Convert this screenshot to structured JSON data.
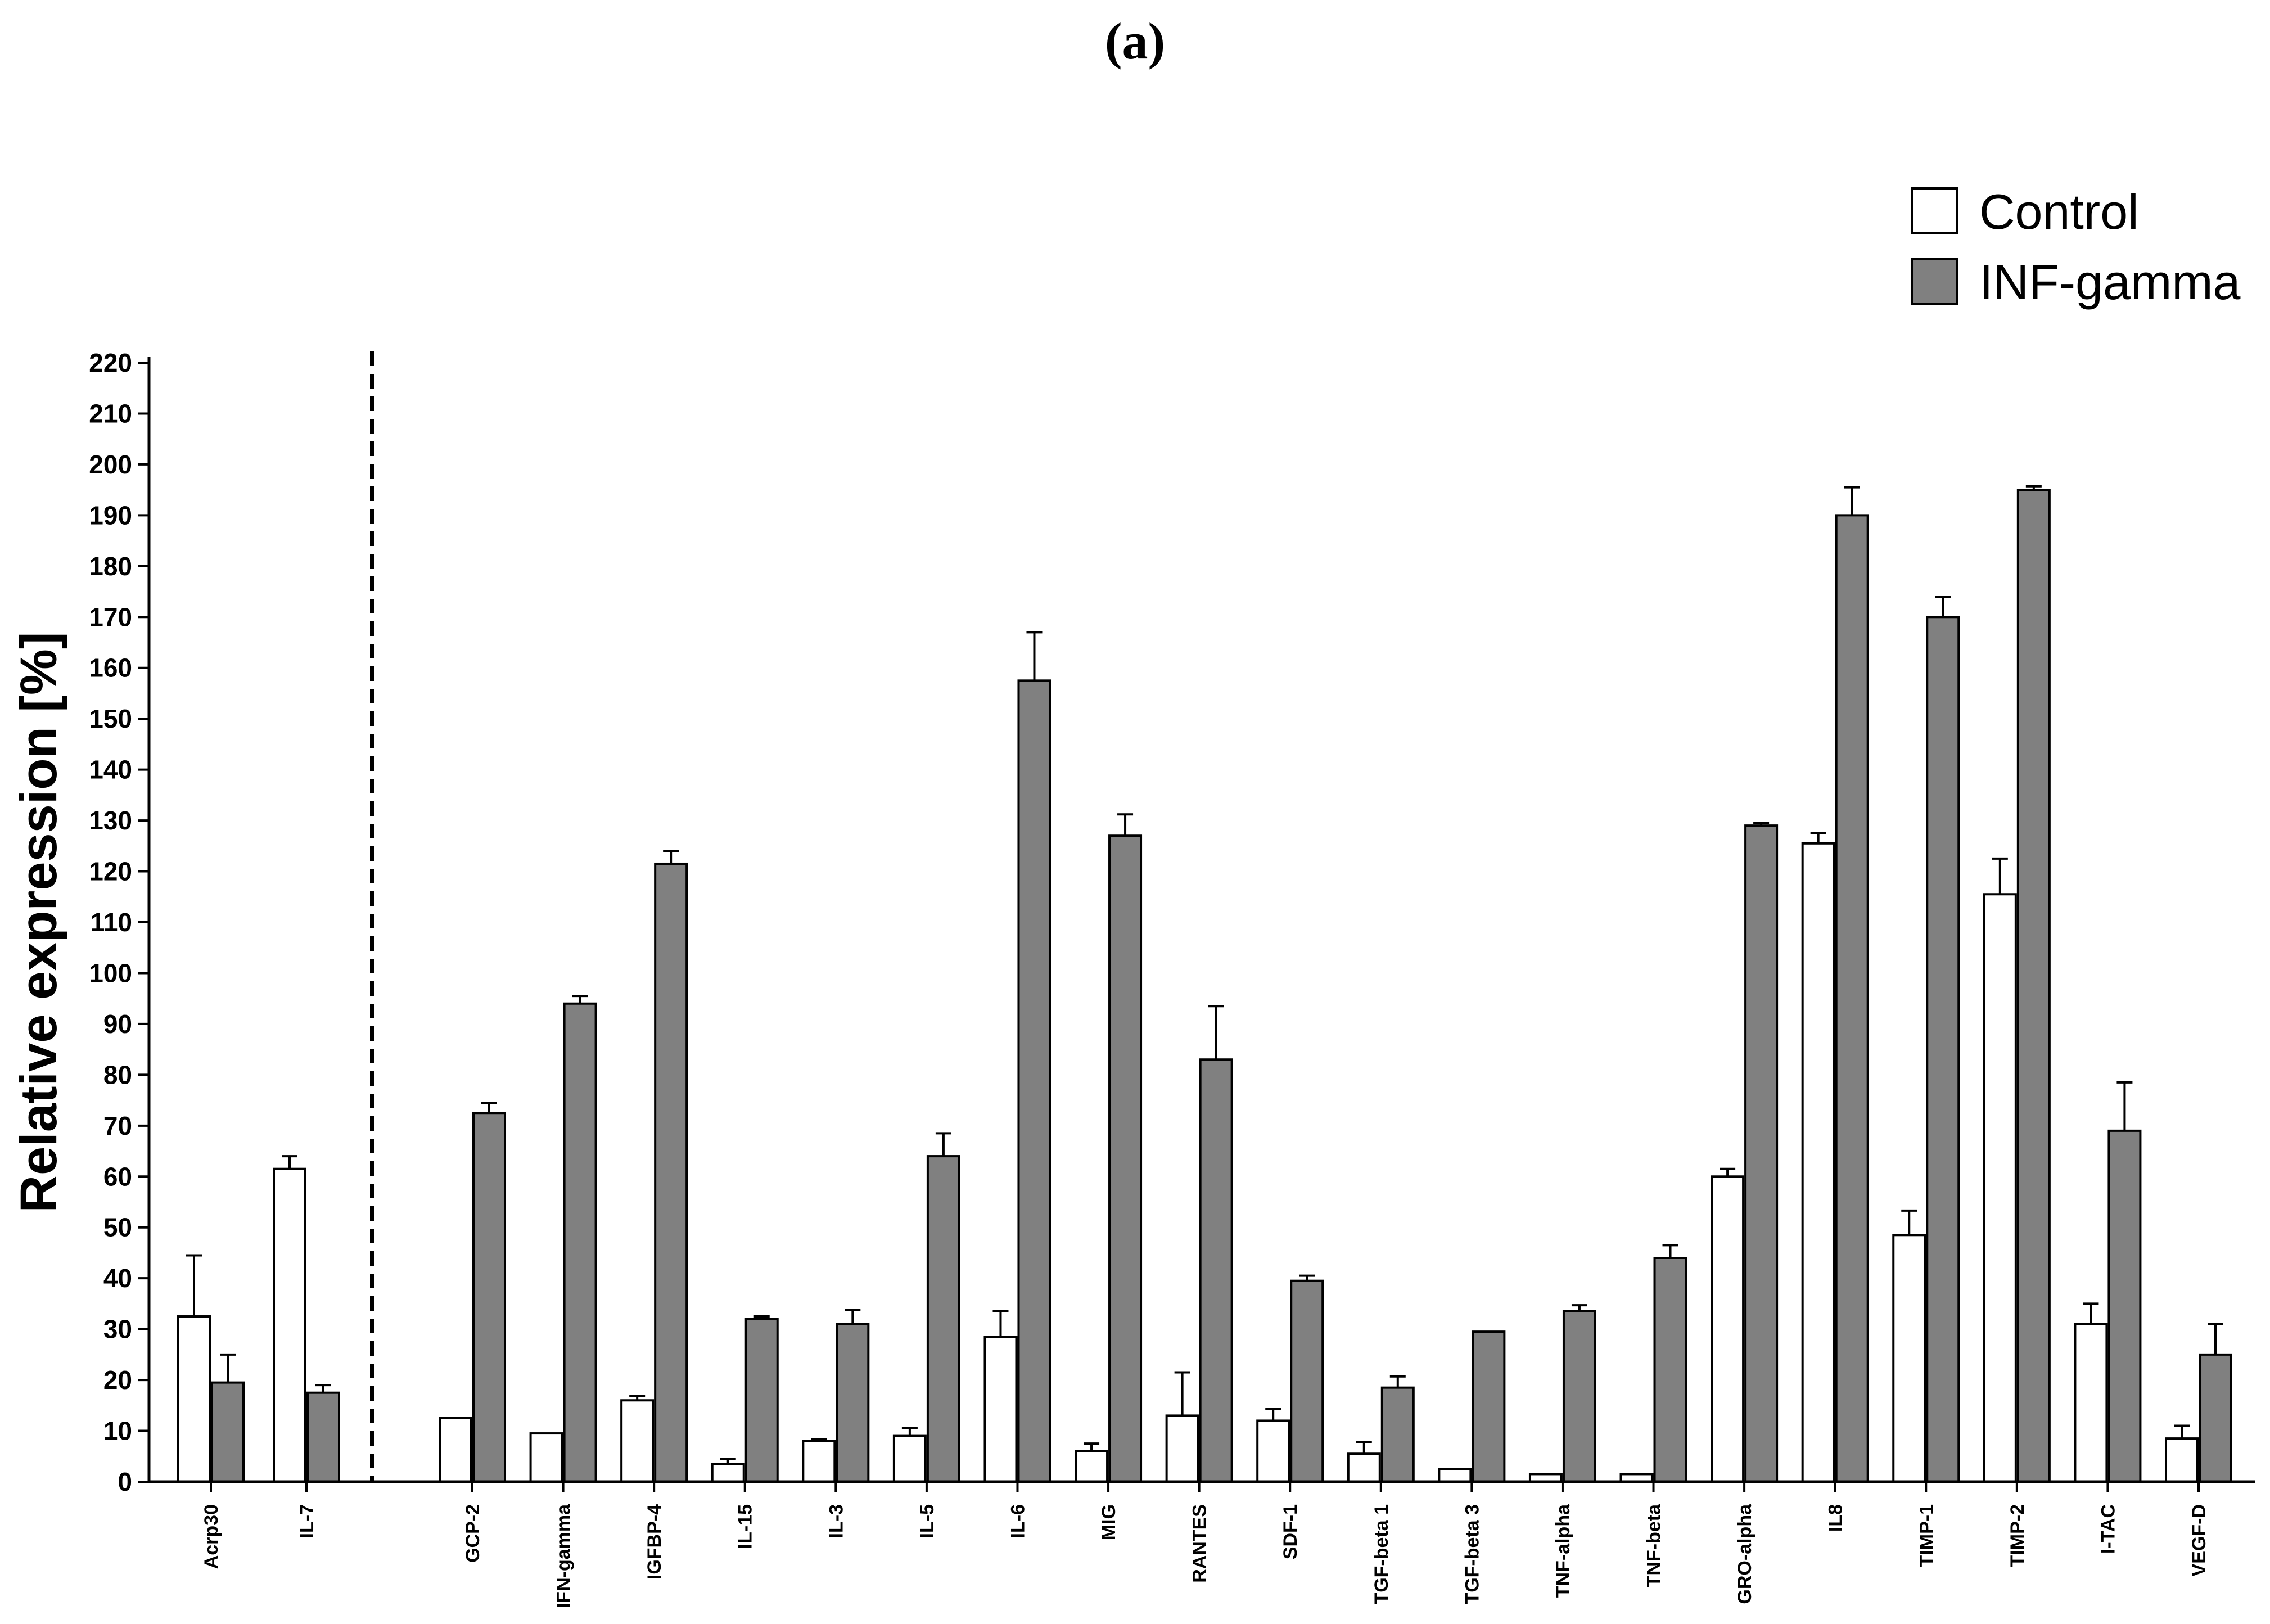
{
  "panel_label": "(a)",
  "chart_data": {
    "type": "bar",
    "title": "",
    "xlabel": "",
    "ylabel": "Relative expression [%]",
    "ylim": [
      0,
      220
    ],
    "ytick_step": 10,
    "grid": false,
    "legend_position": "top-right",
    "group_separator_after_index": 1,
    "categories": [
      "Acrp30",
      "IL-7",
      "GCP-2",
      "IFN-gamma",
      "IGFBP-4",
      "IL-15",
      "IL-3",
      "IL-5",
      "IL-6",
      "MIG",
      "RANTES",
      "SDF-1",
      "TGF-beta 1",
      "TGF-beta 3",
      "TNF-alpha",
      "TNF-beta",
      "GRO-alpha",
      "IL8",
      "TIMP-1",
      "TIMP-2",
      "I-TAC",
      "VEGF-D"
    ],
    "series": [
      {
        "name": "Control",
        "color": "#ffffff",
        "values": [
          32.5,
          61.5,
          12.5,
          9.5,
          16,
          3.5,
          8,
          9,
          28.5,
          6,
          13,
          12,
          5.5,
          2.5,
          1.5,
          1.5,
          60,
          125.5,
          48.5,
          115.5,
          31,
          8.5
        ],
        "errors": [
          12,
          2.5,
          0,
          0,
          0.8,
          1,
          0.3,
          1.5,
          5,
          1.5,
          8.5,
          2.3,
          2.3,
          0,
          0,
          0,
          1.5,
          2,
          4.8,
          7,
          4,
          2.5
        ]
      },
      {
        "name": "INF-gamma",
        "color": "#808080",
        "values": [
          19.5,
          17.5,
          72.5,
          94,
          121.5,
          32,
          31,
          64,
          157.5,
          127,
          83,
          39.5,
          18.5,
          29.5,
          33.5,
          44,
          129,
          190,
          170,
          195,
          69,
          25
        ],
        "errors": [
          5.5,
          1.5,
          2,
          1.5,
          2.5,
          0.5,
          2.8,
          4.5,
          9.5,
          4.2,
          10.5,
          1,
          2.2,
          0,
          1.2,
          2.5,
          0.5,
          5.5,
          4,
          0.7,
          9.5,
          6
        ]
      }
    ]
  }
}
